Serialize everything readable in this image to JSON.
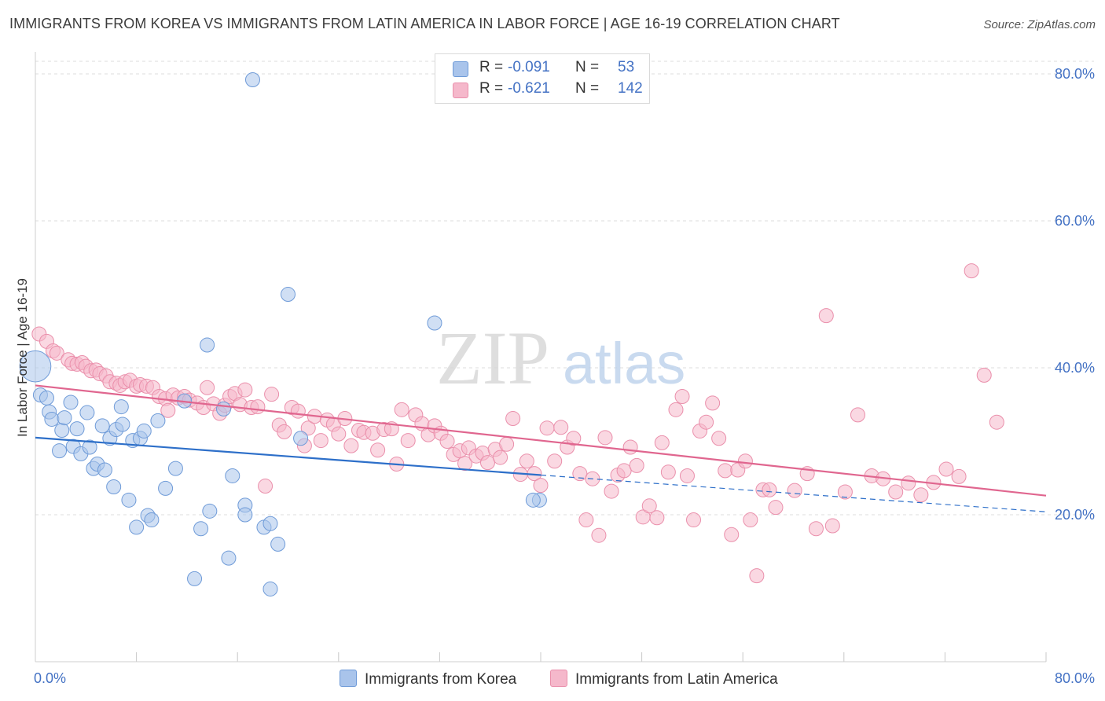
{
  "title": "IMMIGRANTS FROM KOREA VS IMMIGRANTS FROM LATIN AMERICA IN LABOR FORCE | AGE 16-19 CORRELATION CHART",
  "source": "Source: ZipAtlas.com",
  "watermark": {
    "zip": "ZIP",
    "atlas": "atlas"
  },
  "legend": {
    "r_label": "R =",
    "n_label": "N =",
    "korea": {
      "r": "-0.091",
      "n": "53"
    },
    "latin": {
      "r": "-0.621",
      "n": "142"
    }
  },
  "colors": {
    "korea_fill": "#a9c4eb",
    "korea_stroke": "#6f9bd8",
    "korea_line": "#2d6fc9",
    "latin_fill": "#f5b8cb",
    "latin_stroke": "#ea8fab",
    "latin_line": "#e0668f",
    "tick_text": "#4472c4",
    "grid": "#dddddd"
  },
  "chart_data": {
    "type": "scatter",
    "title": "IMMIGRANTS FROM KOREA VS IMMIGRANTS FROM LATIN AMERICA IN LABOR FORCE | AGE 16-19 CORRELATION CHART",
    "xlabel": "",
    "ylabel": "In Labor Force | Age 16-19",
    "xlim": [
      0,
      80
    ],
    "ylim": [
      0,
      83
    ],
    "x_tick_labels": [
      "0.0%",
      "80.0%"
    ],
    "y_ticks": [
      20,
      40,
      60,
      80
    ],
    "y_tick_labels": [
      "20.0%",
      "40.0%",
      "60.0%",
      "80.0%"
    ],
    "grid": true,
    "legend_position": "top-center",
    "series": [
      {
        "name": "Immigrants from Korea",
        "r": -0.091,
        "n": 53,
        "trend": {
          "solid": [
            [
              0,
              30.5
            ],
            [
              40,
              25.4
            ]
          ],
          "dashed": [
            [
              40,
              25.4
            ],
            [
              80,
              20.4
            ]
          ]
        },
        "points": [
          [
            0,
            40.2,
            2.2
          ],
          [
            0.4,
            36.3,
            1
          ],
          [
            0.9,
            35.9,
            1
          ],
          [
            1.1,
            34.0,
            1
          ],
          [
            1.3,
            33.0,
            1
          ],
          [
            1.9,
            28.7,
            1
          ],
          [
            2.1,
            31.5,
            1
          ],
          [
            2.3,
            33.2,
            1
          ],
          [
            2.8,
            35.3,
            1
          ],
          [
            3.0,
            29.3,
            1
          ],
          [
            3.3,
            31.7,
            1
          ],
          [
            3.6,
            28.3,
            1
          ],
          [
            4.1,
            33.9,
            1
          ],
          [
            4.3,
            29.2,
            1
          ],
          [
            4.6,
            26.3,
            1
          ],
          [
            4.9,
            26.9,
            1
          ],
          [
            5.3,
            32.1,
            1
          ],
          [
            5.5,
            26.1,
            1
          ],
          [
            5.9,
            30.4,
            1
          ],
          [
            6.2,
            23.8,
            1
          ],
          [
            6.4,
            31.6,
            1
          ],
          [
            6.8,
            34.7,
            1
          ],
          [
            6.9,
            32.3,
            1
          ],
          [
            7.4,
            22.0,
            1
          ],
          [
            7.7,
            30.1,
            1
          ],
          [
            8.0,
            18.3,
            1
          ],
          [
            8.3,
            30.4,
            1
          ],
          [
            8.6,
            31.4,
            1
          ],
          [
            8.9,
            19.9,
            1
          ],
          [
            9.2,
            19.3,
            1
          ],
          [
            9.7,
            32.8,
            1
          ],
          [
            10.3,
            23.6,
            1
          ],
          [
            11.1,
            26.3,
            1
          ],
          [
            11.8,
            35.5,
            1
          ],
          [
            12.6,
            11.3,
            1
          ],
          [
            13.1,
            18.1,
            1
          ],
          [
            13.6,
            43.1,
            1
          ],
          [
            13.8,
            20.5,
            1
          ],
          [
            14.9,
            34.4,
            1
          ],
          [
            15.3,
            14.1,
            1
          ],
          [
            15.6,
            25.3,
            1
          ],
          [
            16.6,
            21.3,
            1
          ],
          [
            16.6,
            20.0,
            1
          ],
          [
            17.2,
            79.2,
            1
          ],
          [
            18.1,
            18.3,
            1
          ],
          [
            18.6,
            18.8,
            1
          ],
          [
            18.6,
            9.9,
            1
          ],
          [
            19.2,
            16.0,
            1
          ],
          [
            20.0,
            50.0,
            1
          ],
          [
            21.0,
            30.4,
            1
          ],
          [
            31.6,
            46.1,
            1
          ],
          [
            39.9,
            22.0,
            1
          ],
          [
            39.4,
            22.0,
            1
          ]
        ]
      },
      {
        "name": "Immigrants from Latin America",
        "r": -0.621,
        "n": 142,
        "trend": {
          "solid": [
            [
              0,
              37.6
            ],
            [
              80,
              22.6
            ]
          ]
        },
        "points": [
          [
            0.3,
            44.6
          ],
          [
            0.9,
            43.6
          ],
          [
            1.4,
            42.3
          ],
          [
            1.7,
            42.0
          ],
          [
            2.6,
            41.1
          ],
          [
            2.9,
            40.6
          ],
          [
            3.3,
            40.5
          ],
          [
            3.7,
            40.7
          ],
          [
            4.0,
            40.2
          ],
          [
            4.4,
            39.6
          ],
          [
            4.8,
            39.7
          ],
          [
            5.1,
            39.2
          ],
          [
            5.6,
            38.9
          ],
          [
            5.9,
            38.1
          ],
          [
            6.4,
            37.9
          ],
          [
            6.7,
            37.6
          ],
          [
            7.1,
            38.1
          ],
          [
            7.5,
            38.3
          ],
          [
            8.0,
            37.5
          ],
          [
            8.3,
            37.7
          ],
          [
            8.8,
            37.5
          ],
          [
            9.3,
            37.3
          ],
          [
            9.8,
            36.1
          ],
          [
            10.3,
            35.8
          ],
          [
            10.5,
            34.2
          ],
          [
            10.9,
            36.3
          ],
          [
            11.3,
            35.9
          ],
          [
            11.8,
            36.1
          ],
          [
            12.2,
            35.6
          ],
          [
            12.8,
            35.2
          ],
          [
            13.3,
            34.6
          ],
          [
            13.6,
            37.3
          ],
          [
            14.1,
            35.1
          ],
          [
            14.6,
            33.8
          ],
          [
            15.0,
            34.9
          ],
          [
            15.4,
            36.1
          ],
          [
            15.8,
            36.5
          ],
          [
            16.2,
            35.0
          ],
          [
            16.6,
            37.0
          ],
          [
            17.1,
            34.6
          ],
          [
            17.6,
            34.7
          ],
          [
            18.2,
            23.9
          ],
          [
            18.7,
            36.4
          ],
          [
            19.3,
            32.2
          ],
          [
            19.7,
            31.3
          ],
          [
            20.3,
            34.6
          ],
          [
            20.8,
            34.1
          ],
          [
            21.3,
            29.4
          ],
          [
            21.6,
            31.8
          ],
          [
            22.1,
            33.4
          ],
          [
            22.6,
            30.1
          ],
          [
            23.1,
            32.9
          ],
          [
            23.6,
            32.3
          ],
          [
            24.0,
            31.0
          ],
          [
            24.5,
            33.1
          ],
          [
            25.0,
            29.4
          ],
          [
            25.6,
            31.5
          ],
          [
            26.0,
            31.2
          ],
          [
            26.7,
            31.1
          ],
          [
            27.1,
            28.8
          ],
          [
            27.6,
            31.6
          ],
          [
            28.2,
            31.7
          ],
          [
            28.6,
            26.9
          ],
          [
            29.0,
            34.3
          ],
          [
            29.5,
            30.1
          ],
          [
            30.1,
            33.6
          ],
          [
            30.6,
            32.4
          ],
          [
            31.1,
            30.9
          ],
          [
            31.6,
            32.1
          ],
          [
            32.1,
            31.1
          ],
          [
            32.6,
            30.0
          ],
          [
            33.1,
            28.2
          ],
          [
            33.6,
            28.7
          ],
          [
            34.0,
            27.0
          ],
          [
            34.3,
            29.1
          ],
          [
            34.9,
            28.0
          ],
          [
            35.4,
            28.4
          ],
          [
            35.8,
            27.1
          ],
          [
            36.4,
            28.9
          ],
          [
            36.8,
            27.8
          ],
          [
            37.3,
            29.6
          ],
          [
            37.8,
            33.1
          ],
          [
            38.4,
            25.5
          ],
          [
            38.9,
            27.3
          ],
          [
            39.5,
            25.6
          ],
          [
            40.0,
            24.0
          ],
          [
            40.5,
            31.8
          ],
          [
            41.1,
            27.3
          ],
          [
            41.6,
            31.9
          ],
          [
            42.1,
            29.2
          ],
          [
            42.6,
            30.4
          ],
          [
            43.1,
            25.6
          ],
          [
            43.6,
            19.3
          ],
          [
            44.1,
            24.9
          ],
          [
            44.6,
            17.2
          ],
          [
            45.1,
            30.5
          ],
          [
            45.6,
            23.2
          ],
          [
            46.1,
            25.4
          ],
          [
            46.6,
            26.0
          ],
          [
            47.1,
            29.2
          ],
          [
            47.6,
            26.7
          ],
          [
            48.1,
            19.7
          ],
          [
            48.6,
            21.2
          ],
          [
            49.2,
            19.6
          ],
          [
            49.6,
            29.8
          ],
          [
            50.1,
            25.8
          ],
          [
            50.7,
            34.3
          ],
          [
            51.2,
            36.1
          ],
          [
            51.6,
            25.3
          ],
          [
            52.1,
            19.3
          ],
          [
            52.6,
            31.4
          ],
          [
            53.1,
            32.6
          ],
          [
            53.6,
            35.2
          ],
          [
            54.1,
            30.4
          ],
          [
            54.6,
            26.0
          ],
          [
            55.1,
            17.3
          ],
          [
            55.6,
            26.1
          ],
          [
            56.2,
            27.3
          ],
          [
            56.6,
            19.3
          ],
          [
            57.1,
            11.7
          ],
          [
            57.6,
            23.4
          ],
          [
            58.1,
            23.4
          ],
          [
            58.6,
            21.0
          ],
          [
            60.1,
            23.3
          ],
          [
            61.1,
            25.6
          ],
          [
            61.8,
            18.1
          ],
          [
            62.6,
            47.1
          ],
          [
            63.1,
            18.5
          ],
          [
            64.1,
            23.1
          ],
          [
            65.1,
            33.6
          ],
          [
            66.2,
            25.3
          ],
          [
            67.1,
            24.9
          ],
          [
            68.1,
            23.1
          ],
          [
            69.1,
            24.3
          ],
          [
            70.1,
            22.7
          ],
          [
            71.1,
            24.4
          ],
          [
            72.1,
            26.2
          ],
          [
            74.1,
            53.2
          ],
          [
            75.1,
            39.0
          ],
          [
            76.1,
            32.6
          ],
          [
            73.1,
            25.2
          ]
        ]
      }
    ]
  }
}
